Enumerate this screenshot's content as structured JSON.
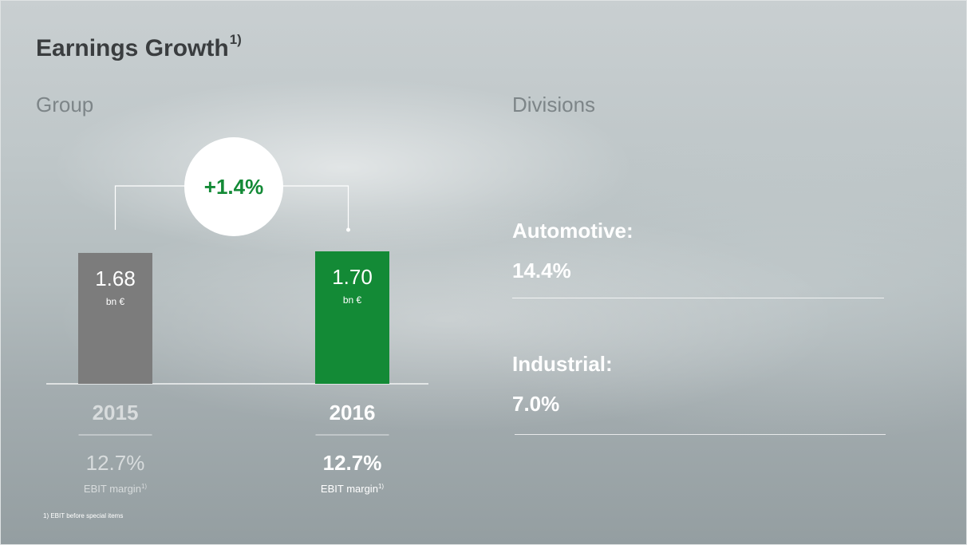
{
  "slide": {
    "title": "Earnings Growth",
    "title_sup": "1)",
    "group_label": "Group",
    "divisions_label": "Divisions",
    "footnote": "1) EBIT before special items"
  },
  "chart_data": {
    "type": "bar",
    "categories": [
      "2015",
      "2016"
    ],
    "values": [
      1.68,
      1.7
    ],
    "value_labels": [
      "1.68",
      "1.70"
    ],
    "unit": "bn €",
    "colors": [
      "#7c7c7c",
      "#138a36"
    ],
    "growth_label": "+1.4%",
    "growth_color": "#138a36",
    "ebit_margin": [
      "12.7%",
      "12.7%"
    ],
    "ebit_margin_label": "EBIT margin",
    "ebit_margin_sup": "1)",
    "ylim": [
      0,
      1.7
    ]
  },
  "divisions": [
    {
      "name": "Automotive:",
      "value": "14.4%"
    },
    {
      "name": "Industrial:",
      "value": "7.0%"
    }
  ]
}
